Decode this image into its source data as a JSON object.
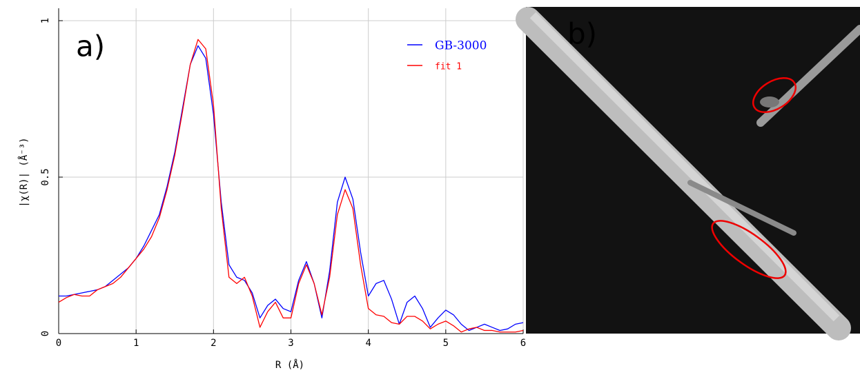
{
  "chart_data": {
    "type": "line",
    "panel_label": "a)",
    "x_label": "R (Å)",
    "y_label": "|χ(R)| (Å⁻³)",
    "xlim": [
      0,
      6
    ],
    "xticks": [
      0,
      1,
      2,
      3,
      4,
      5,
      6
    ],
    "ylim": [
      0,
      1
    ],
    "yticks": [
      0,
      0.5,
      1
    ],
    "grid": true,
    "legend": "upper right",
    "x": [
      0,
      0.1,
      0.2,
      0.3,
      0.4,
      0.5,
      0.6,
      0.7,
      0.8,
      0.9,
      1.0,
      1.1,
      1.2,
      1.3,
      1.4,
      1.5,
      1.6,
      1.7,
      1.8,
      1.9,
      2.0,
      2.1,
      2.2,
      2.3,
      2.4,
      2.5,
      2.6,
      2.7,
      2.8,
      2.9,
      3.0,
      3.1,
      3.2,
      3.3,
      3.4,
      3.5,
      3.6,
      3.7,
      3.8,
      3.9,
      4.0,
      4.1,
      4.2,
      4.3,
      4.4,
      4.5,
      4.6,
      4.7,
      4.8,
      4.9,
      5.0,
      5.1,
      5.2,
      5.3,
      5.4,
      5.5,
      5.6,
      5.7,
      5.8,
      5.9,
      6.0
    ],
    "series": [
      {
        "name": "GB-3000",
        "color": "#0000ff",
        "values": [
          0.12,
          0.12,
          0.125,
          0.13,
          0.135,
          0.14,
          0.15,
          0.17,
          0.19,
          0.21,
          0.24,
          0.28,
          0.33,
          0.38,
          0.47,
          0.58,
          0.72,
          0.86,
          0.92,
          0.88,
          0.7,
          0.42,
          0.22,
          0.18,
          0.17,
          0.13,
          0.05,
          0.09,
          0.11,
          0.08,
          0.07,
          0.17,
          0.23,
          0.16,
          0.05,
          0.2,
          0.42,
          0.5,
          0.43,
          0.26,
          0.12,
          0.16,
          0.17,
          0.11,
          0.03,
          0.1,
          0.12,
          0.08,
          0.02,
          0.05,
          0.075,
          0.06,
          0.03,
          0.01,
          0.02,
          0.03,
          0.02,
          0.01,
          0.015,
          0.03,
          0.035
        ]
      },
      {
        "name": "fit 1",
        "color": "#ff0000",
        "values": [
          0.1,
          0.115,
          0.125,
          0.12,
          0.12,
          0.14,
          0.15,
          0.16,
          0.18,
          0.21,
          0.24,
          0.27,
          0.31,
          0.37,
          0.46,
          0.57,
          0.71,
          0.86,
          0.94,
          0.91,
          0.73,
          0.4,
          0.18,
          0.16,
          0.18,
          0.12,
          0.02,
          0.07,
          0.1,
          0.05,
          0.05,
          0.16,
          0.22,
          0.16,
          0.06,
          0.18,
          0.38,
          0.46,
          0.4,
          0.22,
          0.08,
          0.06,
          0.055,
          0.035,
          0.03,
          0.055,
          0.055,
          0.04,
          0.015,
          0.03,
          0.04,
          0.025,
          0.005,
          0.015,
          0.02,
          0.01,
          0.01,
          0.005,
          0.005,
          0.005,
          0.01
        ]
      }
    ]
  },
  "image_panel": {
    "label": "b)"
  }
}
